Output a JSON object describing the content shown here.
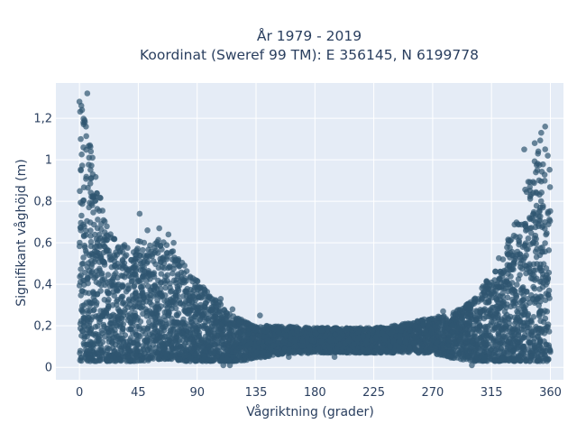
{
  "chart_data": {
    "type": "scatter",
    "title_line1": "År 1979 - 2019",
    "title_line2": "Koordinat (Sweref 99 TM): E 356145, N 6199778",
    "xlabel": "Vågriktning (grader)",
    "ylabel": "Signifikant våghöjd (m)",
    "xlim": [
      -18,
      370
    ],
    "ylim": [
      -0.06,
      1.37
    ],
    "x_ticks": [
      0,
      45,
      90,
      135,
      180,
      225,
      270,
      315,
      360
    ],
    "x_tick_labels": [
      "0",
      "45",
      "90",
      "135",
      "180",
      "225",
      "270",
      "315",
      "360"
    ],
    "y_ticks": [
      0,
      0.2,
      0.4,
      0.6,
      0.8,
      1.0,
      1.2
    ],
    "y_tick_labels": [
      "0",
      "0,2",
      "0,4",
      "0,6",
      "0,8",
      "1",
      "1,2"
    ],
    "grid": true,
    "legend": "none",
    "marker_color": "#2f5670",
    "plot_bg": "#e5ecf6",
    "series": [
      {
        "envelope_x": [
          0,
          5,
          10,
          15,
          20,
          30,
          40,
          45,
          50,
          60,
          65,
          70,
          80,
          90,
          100,
          110,
          120,
          135,
          150,
          180,
          210,
          225,
          240,
          270,
          285,
          300,
          315,
          320,
          330,
          340,
          345,
          350,
          355,
          360
        ],
        "envelope_ymax": [
          1.28,
          1.32,
          0.98,
          0.85,
          0.7,
          0.62,
          0.58,
          0.63,
          0.6,
          0.62,
          0.6,
          0.58,
          0.5,
          0.42,
          0.35,
          0.3,
          0.24,
          0.2,
          0.2,
          0.19,
          0.19,
          0.19,
          0.2,
          0.24,
          0.26,
          0.32,
          0.45,
          0.52,
          0.65,
          0.85,
          0.95,
          1.05,
          1.15,
          0.95
        ],
        "envelope_ymin": [
          0.03,
          0.03,
          0.03,
          0.03,
          0.03,
          0.03,
          0.03,
          0.03,
          0.03,
          0.04,
          0.04,
          0.04,
          0.03,
          0.03,
          0.03,
          0.03,
          0.03,
          0.04,
          0.06,
          0.07,
          0.07,
          0.07,
          0.07,
          0.07,
          0.04,
          0.03,
          0.03,
          0.03,
          0.03,
          0.03,
          0.03,
          0.03,
          0.03,
          0.03
        ],
        "outliers": [
          {
            "x": 0,
            "y": 1.28
          },
          {
            "x": 6,
            "y": 1.32
          },
          {
            "x": 2,
            "y": 1.24
          },
          {
            "x": 4,
            "y": 1.19
          },
          {
            "x": 1,
            "y": 1.1
          },
          {
            "x": 5,
            "y": 1.16
          },
          {
            "x": 8,
            "y": 1.07
          },
          {
            "x": 10,
            "y": 1.01
          },
          {
            "x": 46,
            "y": 0.74
          },
          {
            "x": 52,
            "y": 0.66
          },
          {
            "x": 61,
            "y": 0.67
          },
          {
            "x": 68,
            "y": 0.64
          },
          {
            "x": 72,
            "y": 0.6
          },
          {
            "x": 108,
            "y": 0.33
          },
          {
            "x": 117,
            "y": 0.28
          },
          {
            "x": 138,
            "y": 0.25
          },
          {
            "x": 110,
            "y": 0.01
          },
          {
            "x": 115,
            "y": 0.01
          },
          {
            "x": 160,
            "y": 0.05
          },
          {
            "x": 195,
            "y": 0.05
          },
          {
            "x": 278,
            "y": 0.27
          },
          {
            "x": 300,
            "y": 0.01
          },
          {
            "x": 340,
            "y": 1.05
          },
          {
            "x": 348,
            "y": 1.08
          },
          {
            "x": 353,
            "y": 1.13
          },
          {
            "x": 356,
            "y": 1.16
          },
          {
            "x": 350,
            "y": 0.95
          },
          {
            "x": 358,
            "y": 1.02
          }
        ]
      }
    ]
  }
}
